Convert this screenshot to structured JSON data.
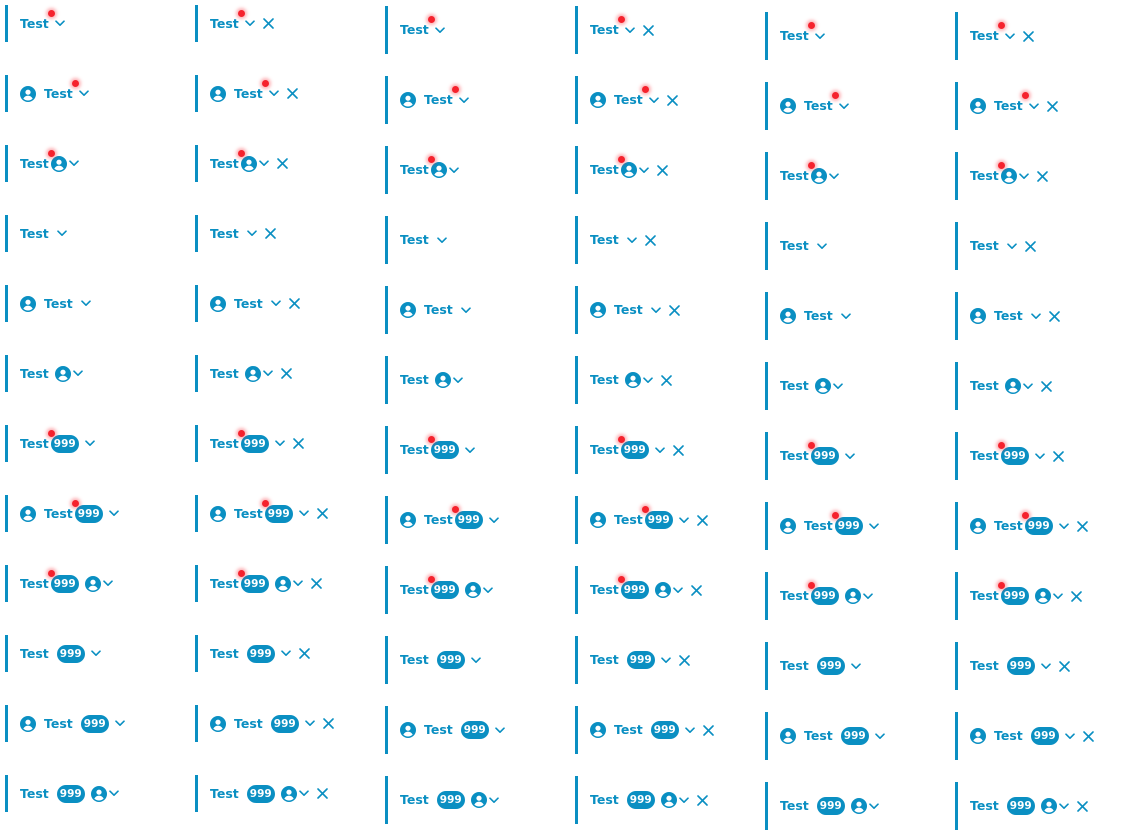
{
  "tab_label": "Test",
  "badge_count": "999",
  "colors": {
    "accent": "#0a8fc2",
    "dot": "#f5222d"
  },
  "icons": {
    "avatar": "user-circle-icon",
    "dropdown": "chevron-down-icon",
    "close": "close-icon"
  },
  "row_variants": [
    {
      "dot": true,
      "avatar": "none",
      "badge": false
    },
    {
      "dot": true,
      "avatar": "before",
      "badge": false
    },
    {
      "dot": true,
      "avatar": "after",
      "badge": false
    },
    {
      "dot": false,
      "avatar": "none",
      "badge": false
    },
    {
      "dot": false,
      "avatar": "before",
      "badge": false
    },
    {
      "dot": false,
      "avatar": "after",
      "badge": false
    },
    {
      "dot": true,
      "avatar": "none",
      "badge": true
    },
    {
      "dot": true,
      "avatar": "before",
      "badge": true
    },
    {
      "dot": true,
      "avatar": "after",
      "badge": true
    },
    {
      "dot": false,
      "avatar": "none",
      "badge": true
    },
    {
      "dot": false,
      "avatar": "before",
      "badge": true
    },
    {
      "dot": false,
      "avatar": "after",
      "badge": true
    }
  ],
  "column_variants": [
    {
      "closable": false
    },
    {
      "closable": true
    },
    {
      "closable": false
    },
    {
      "closable": true
    },
    {
      "closable": false
    },
    {
      "closable": true
    }
  ]
}
